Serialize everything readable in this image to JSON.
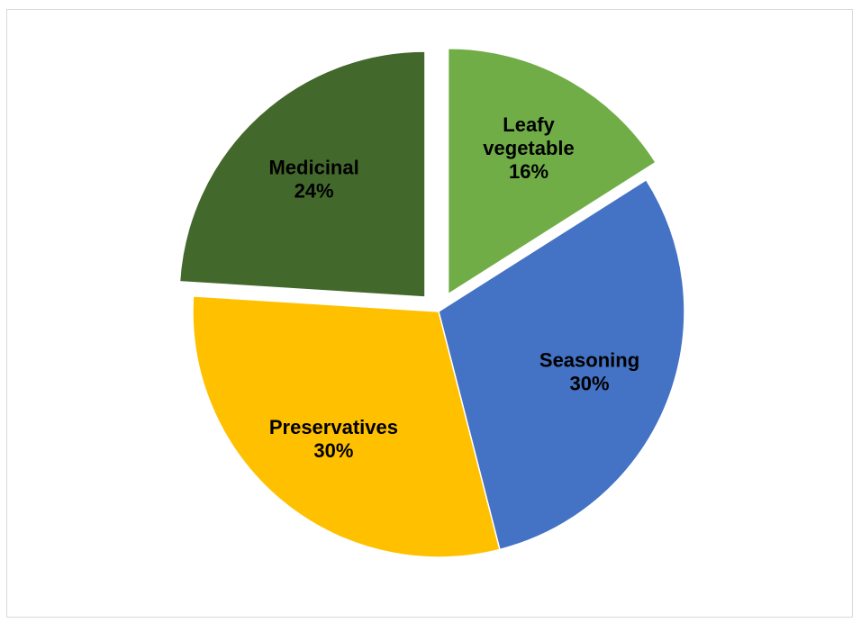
{
  "chart_data": {
    "type": "pie",
    "title": "",
    "slices": [
      {
        "name": "Leafy vegetable",
        "label_lines": [
          "Leafy",
          "vegetable"
        ],
        "value": 16,
        "value_label": "16%",
        "color": "#70AD47",
        "exploded": true
      },
      {
        "name": "Seasoning",
        "label_lines": [
          "Seasoning"
        ],
        "value": 30,
        "value_label": "30%",
        "color": "#4472C4",
        "exploded": false
      },
      {
        "name": "Preservatives",
        "label_lines": [
          "Preservatives"
        ],
        "value": 30,
        "value_label": "30%",
        "color": "#FFC000",
        "exploded": false
      },
      {
        "name": "Medicinal",
        "label_lines": [
          "Medicinal"
        ],
        "value": 24,
        "value_label": "24%",
        "color": "#43682B",
        "exploded": true
      }
    ],
    "start_angle_deg": 0,
    "direction": "clockwise",
    "legend": "none",
    "data_labels": "inside"
  }
}
